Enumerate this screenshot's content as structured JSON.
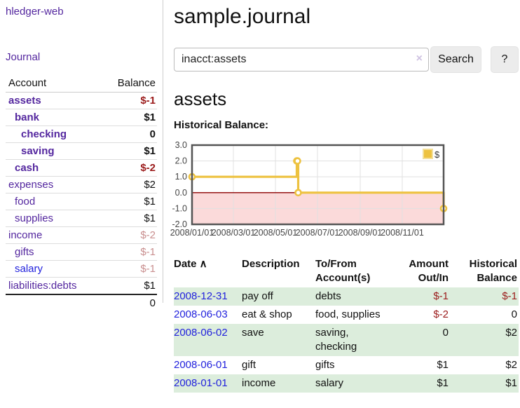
{
  "app": {
    "title": "hledger-web"
  },
  "sidebar": {
    "nav": {
      "journal_label": "Journal"
    },
    "accounts_table": {
      "headers": {
        "account": "Account",
        "balance": "Balance"
      },
      "rows": [
        {
          "account": "assets",
          "balance": "$-1",
          "indent": 1,
          "bold": true,
          "balance_style": "neg-strong",
          "link_color": "purple"
        },
        {
          "account": "bank",
          "balance": "$1",
          "indent": 2,
          "bold": true,
          "balance_style": "pos",
          "link_color": "purple"
        },
        {
          "account": "checking",
          "balance": "0",
          "indent": 3,
          "bold": true,
          "balance_style": "pos",
          "link_color": "purple"
        },
        {
          "account": "saving",
          "balance": "$1",
          "indent": 3,
          "bold": true,
          "balance_style": "pos",
          "link_color": "purple"
        },
        {
          "account": "cash",
          "balance": "$-2",
          "indent": 2,
          "bold": true,
          "balance_style": "neg-strong",
          "link_color": "purple"
        },
        {
          "account": "expenses",
          "balance": "$2",
          "indent": 1,
          "bold": false,
          "balance_style": "pos",
          "link_color": "purple"
        },
        {
          "account": "food",
          "balance": "$1",
          "indent": 2,
          "bold": false,
          "balance_style": "pos",
          "link_color": "purple"
        },
        {
          "account": "supplies",
          "balance": "$1",
          "indent": 2,
          "bold": false,
          "balance_style": "pos",
          "link_color": "purple"
        },
        {
          "account": "income",
          "balance": "$-2",
          "indent": 1,
          "bold": false,
          "balance_style": "neg-muted",
          "link_color": "purple"
        },
        {
          "account": "gifts",
          "balance": "$-1",
          "indent": 2,
          "bold": false,
          "balance_style": "neg-muted",
          "link_color": "purple"
        },
        {
          "account": "salary",
          "balance": "$-1",
          "indent": 2,
          "bold": false,
          "balance_style": "neg-muted",
          "link_color": "blue"
        },
        {
          "account": "liabilities:debts",
          "balance": "$1",
          "indent": 1,
          "bold": false,
          "balance_style": "pos",
          "link_color": "purple"
        }
      ],
      "total": "0"
    }
  },
  "header": {
    "title": "sample.journal"
  },
  "search": {
    "value": "inacct:assets",
    "clear_icon": "×",
    "button_label": "Search",
    "help_label": "?"
  },
  "account_page": {
    "title": "assets",
    "chart_label": "Historical Balance:"
  },
  "chart_data": {
    "type": "line",
    "title": "Historical Balance:",
    "series": [
      {
        "name": "$",
        "step": true,
        "color": "#edc240",
        "points": [
          [
            "2008-01-01",
            1
          ],
          [
            "2008-06-01",
            2
          ],
          [
            "2008-06-02",
            2
          ],
          [
            "2008-06-03",
            0
          ],
          [
            "2008-12-31",
            -1
          ]
        ]
      }
    ],
    "xlim": [
      "2008-01-01",
      "2008-12-31"
    ],
    "ylim": [
      -2,
      3
    ],
    "x_ticks": [
      "2008/01/01",
      "2008/03/01",
      "2008/05/01",
      "2008/07/01",
      "2008/09/01",
      "2008/11/01"
    ],
    "y_ticks": [
      3.0,
      2.0,
      1.0,
      0.0,
      -1.0,
      -2.0
    ],
    "legend_position": "top-right",
    "grid": true,
    "gridline_color": "#e0e0e0",
    "negative_region_color": "#fbdada",
    "zero_line_color": "#8b0000",
    "border_color": "#545454",
    "tick_label_color": "#444444"
  },
  "register_table": {
    "headers": [
      {
        "label": "Date",
        "sort_indicator": "∧",
        "align": "left"
      },
      {
        "label": "Description",
        "align": "left"
      },
      {
        "label": "To/From Account(s)",
        "align": "left"
      },
      {
        "label": "Amount Out/In",
        "align": "right"
      },
      {
        "label": "Historical Balance",
        "align": "right"
      }
    ],
    "rows": [
      {
        "date": "2008-12-31",
        "description": "pay off",
        "accounts": "debts",
        "amount": "$-1",
        "amount_style": "neg-strong",
        "balance": "$-1",
        "balance_style": "neg-strong"
      },
      {
        "date": "2008-06-03",
        "description": "eat & shop",
        "accounts": "food, supplies",
        "amount": "$-2",
        "amount_style": "neg-strong",
        "balance": "0",
        "balance_style": "pos"
      },
      {
        "date": "2008-06-02",
        "description": "save",
        "accounts": "saving, checking",
        "amount": "0",
        "amount_style": "pos",
        "balance": "$2",
        "balance_style": "pos"
      },
      {
        "date": "2008-06-01",
        "description": "gift",
        "accounts": "gifts",
        "amount": "$1",
        "amount_style": "pos",
        "balance": "$2",
        "balance_style": "pos"
      },
      {
        "date": "2008-01-01",
        "description": "income",
        "accounts": "salary",
        "amount": "$1",
        "amount_style": "pos",
        "balance": "$1",
        "balance_style": "pos"
      }
    ]
  }
}
